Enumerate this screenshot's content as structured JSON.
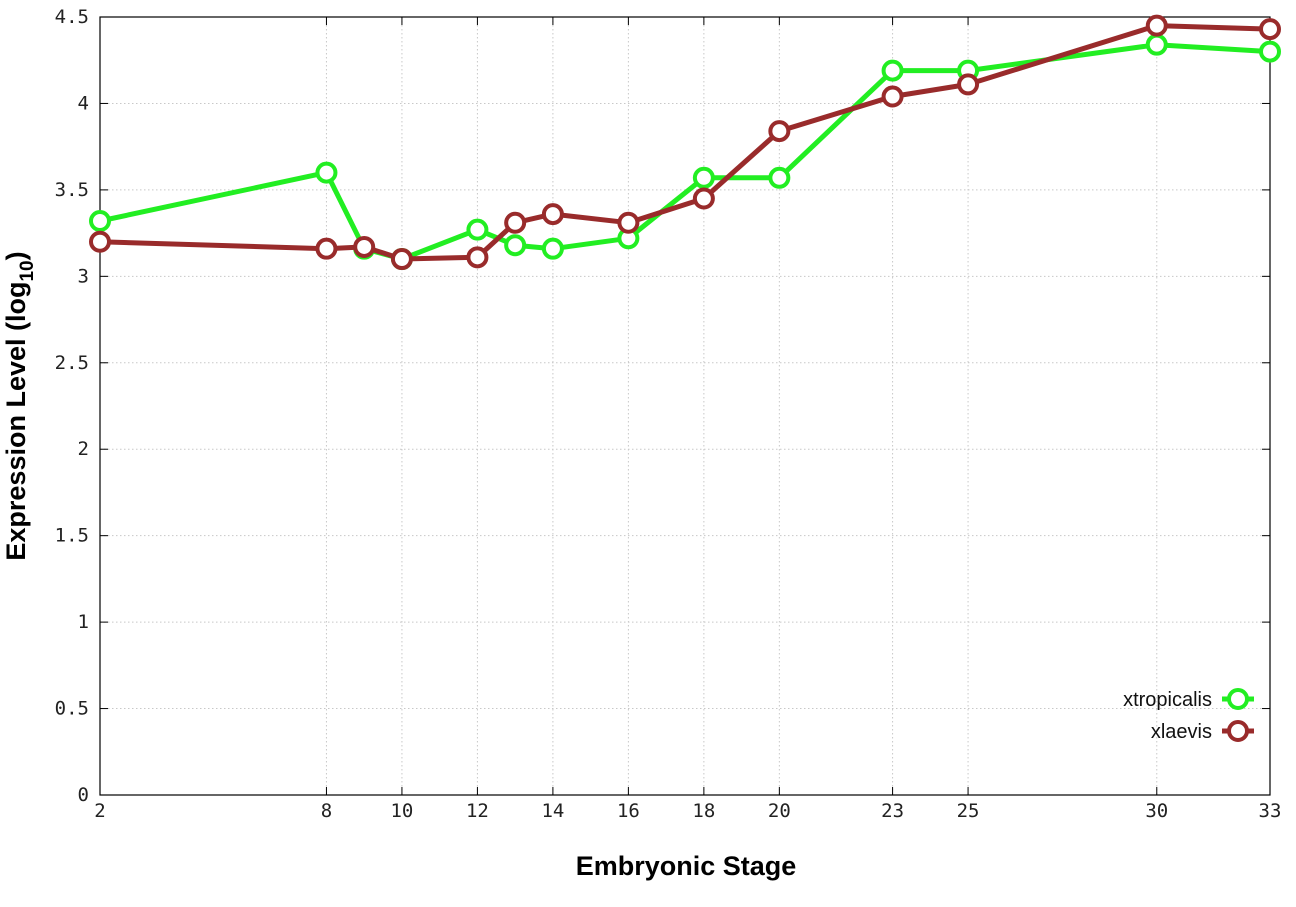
{
  "chart_data": {
    "type": "line",
    "xlabel": "Embryonic Stage",
    "ylabel_main": "Expression Level (log",
    "ylabel_sub": "10",
    "ylabel_close": ")",
    "xlim": [
      2,
      33
    ],
    "ylim": [
      0,
      4.5
    ],
    "x_ticks": [
      2,
      8,
      10,
      12,
      14,
      16,
      18,
      20,
      23,
      25,
      30,
      33
    ],
    "y_ticks": [
      0,
      0.5,
      1,
      1.5,
      2,
      2.5,
      3,
      3.5,
      4,
      4.5
    ],
    "y_tick_labels": [
      "0",
      "0.5",
      "1",
      "1.5",
      "2",
      "2.5",
      "3",
      "3.5",
      "4",
      "4.5"
    ],
    "grid": true,
    "legend_position": "bottom-right",
    "series": [
      {
        "name": "xtropicalis",
        "color": "#22ee22",
        "x": [
          2,
          8,
          9,
          10,
          12,
          13,
          14,
          16,
          18,
          20,
          23,
          25,
          30,
          33
        ],
        "y": [
          3.32,
          3.6,
          3.16,
          3.1,
          3.27,
          3.18,
          3.16,
          3.22,
          3.57,
          3.57,
          4.19,
          4.19,
          4.34,
          4.3
        ]
      },
      {
        "name": "xlaevis",
        "color": "#992b2b",
        "x": [
          2,
          8,
          9,
          10,
          12,
          13,
          14,
          16,
          18,
          20,
          23,
          25,
          30,
          33
        ],
        "y": [
          3.2,
          3.16,
          3.17,
          3.1,
          3.11,
          3.31,
          3.36,
          3.31,
          3.45,
          3.84,
          4.04,
          4.11,
          4.45,
          4.43
        ]
      }
    ]
  }
}
